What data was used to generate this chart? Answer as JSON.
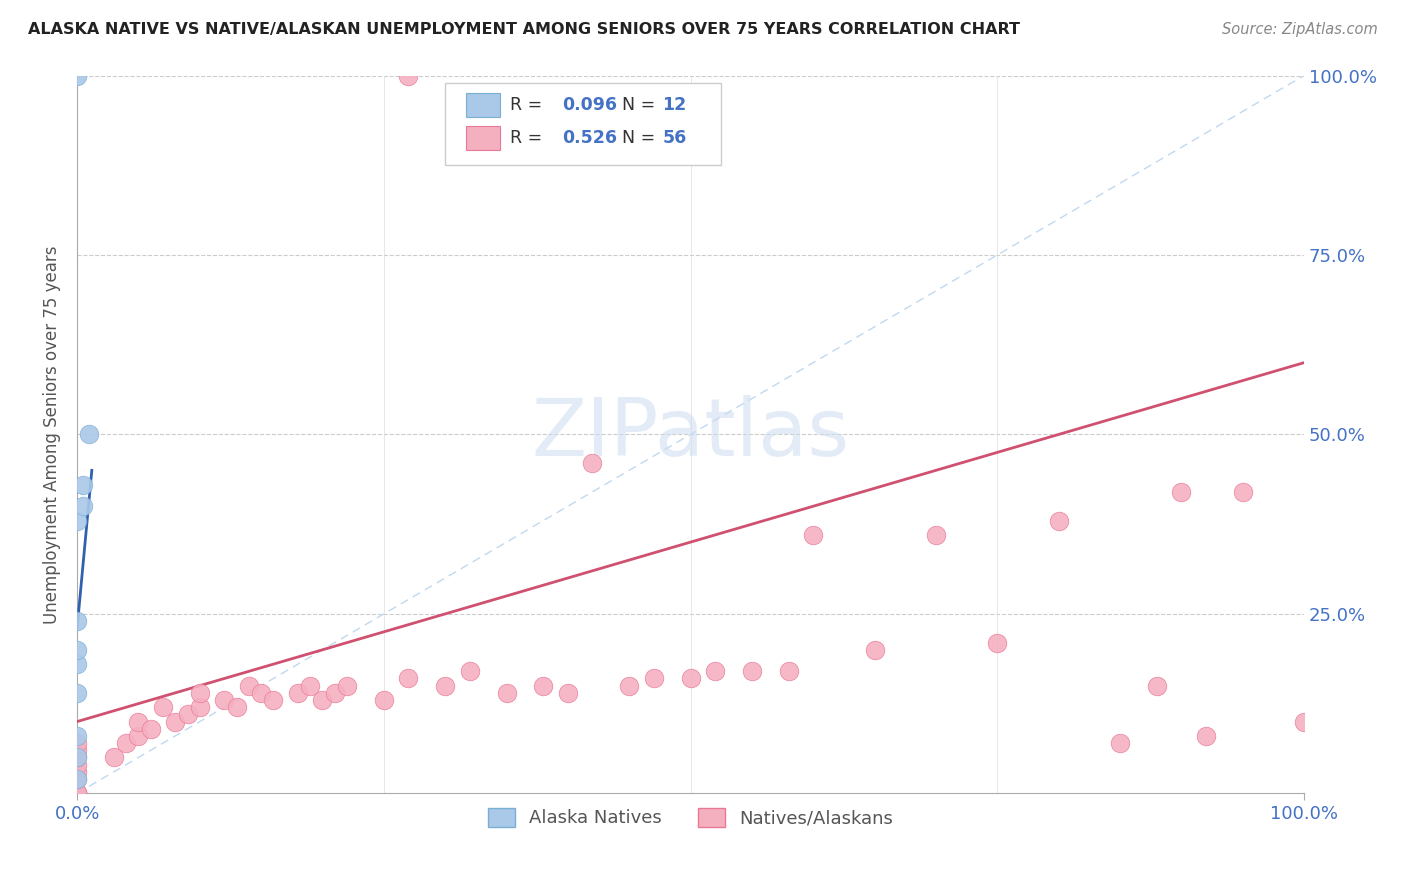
{
  "title": "ALASKA NATIVE VS NATIVE/ALASKAN UNEMPLOYMENT AMONG SENIORS OVER 75 YEARS CORRELATION CHART",
  "source": "Source: ZipAtlas.com",
  "ylabel": "Unemployment Among Seniors over 75 years",
  "xlim": [
    0.0,
    1.0
  ],
  "ylim": [
    0.0,
    1.0
  ],
  "watermark_text": "ZIPatlas",
  "blue_R": 0.096,
  "blue_N": 12,
  "pink_R": 0.526,
  "pink_N": 56,
  "blue_label": "Alaska Natives",
  "pink_label": "Natives/Alaskans",
  "blue_color": "#aac8e8",
  "blue_edge": "#7aafd4",
  "pink_color": "#f5b0c0",
  "pink_edge": "#e87898",
  "blue_line_color": "#3060b0",
  "pink_line_color": "#d05070",
  "diag_line_color": "#c0d8f0",
  "tick_color": "#4472c4",
  "blue_x": [
    0.0,
    0.0,
    0.0,
    0.0,
    0.0,
    0.0,
    0.0,
    0.0,
    0.005,
    0.005,
    0.01,
    0.0
  ],
  "blue_y": [
    0.02,
    0.05,
    0.08,
    0.14,
    0.18,
    0.2,
    0.24,
    0.38,
    0.4,
    0.43,
    0.5,
    1.0
  ],
  "pink_x": [
    0.0,
    0.0,
    0.0,
    0.0,
    0.0,
    0.0,
    0.0,
    0.0,
    0.0,
    0.0,
    0.03,
    0.04,
    0.05,
    0.05,
    0.06,
    0.07,
    0.08,
    0.09,
    0.1,
    0.1,
    0.12,
    0.13,
    0.14,
    0.15,
    0.16,
    0.18,
    0.19,
    0.2,
    0.21,
    0.22,
    0.25,
    0.27,
    0.3,
    0.32,
    0.35,
    0.38,
    0.4,
    0.42,
    0.45,
    0.47,
    0.5,
    0.52,
    0.55,
    0.58,
    0.6,
    0.65,
    0.7,
    0.75,
    0.8,
    0.85,
    0.88,
    0.9,
    0.92,
    0.95,
    0.27,
    1.0
  ],
  "pink_y": [
    0.0,
    0.0,
    0.0,
    0.0,
    0.02,
    0.03,
    0.04,
    0.05,
    0.06,
    0.07,
    0.05,
    0.07,
    0.08,
    0.1,
    0.09,
    0.12,
    0.1,
    0.11,
    0.12,
    0.14,
    0.13,
    0.12,
    0.15,
    0.14,
    0.13,
    0.14,
    0.15,
    0.13,
    0.14,
    0.15,
    0.13,
    0.16,
    0.15,
    0.17,
    0.14,
    0.15,
    0.14,
    0.46,
    0.15,
    0.16,
    0.16,
    0.17,
    0.17,
    0.17,
    0.36,
    0.2,
    0.36,
    0.21,
    0.38,
    0.07,
    0.15,
    0.42,
    0.08,
    0.42,
    1.0,
    0.1
  ],
  "pink_line_x0": 0.0,
  "pink_line_y0": 0.1,
  "pink_line_x1": 1.0,
  "pink_line_y1": 0.6,
  "blue_line_x0": 0.0,
  "blue_line_y0": 0.23,
  "blue_line_x1": 0.012,
  "blue_line_y1": 0.45
}
